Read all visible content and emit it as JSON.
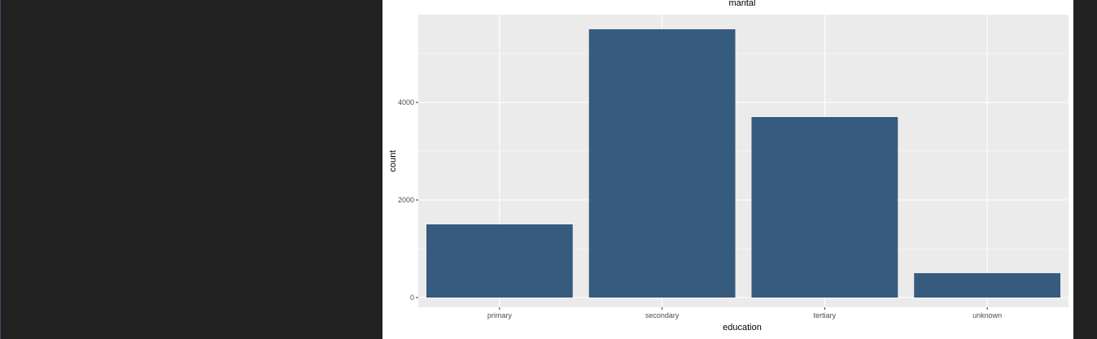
{
  "colors": {
    "panel_background": "#EBEBEB",
    "grid": "#FFFFFF",
    "bar_fill": "#375A7F",
    "page_background": "#222222",
    "plot_background": "#FFFFFF"
  },
  "chart_data": {
    "type": "bar",
    "title": "marital",
    "xlabel": "education",
    "ylabel": "count",
    "categories": [
      "primary",
      "secondary",
      "tertiary",
      "unknown"
    ],
    "values": [
      1500,
      5500,
      3700,
      500
    ],
    "ylim": [
      -200,
      5800
    ],
    "yticks": [
      0,
      2000,
      4000
    ],
    "grid": true,
    "legend": "none"
  }
}
